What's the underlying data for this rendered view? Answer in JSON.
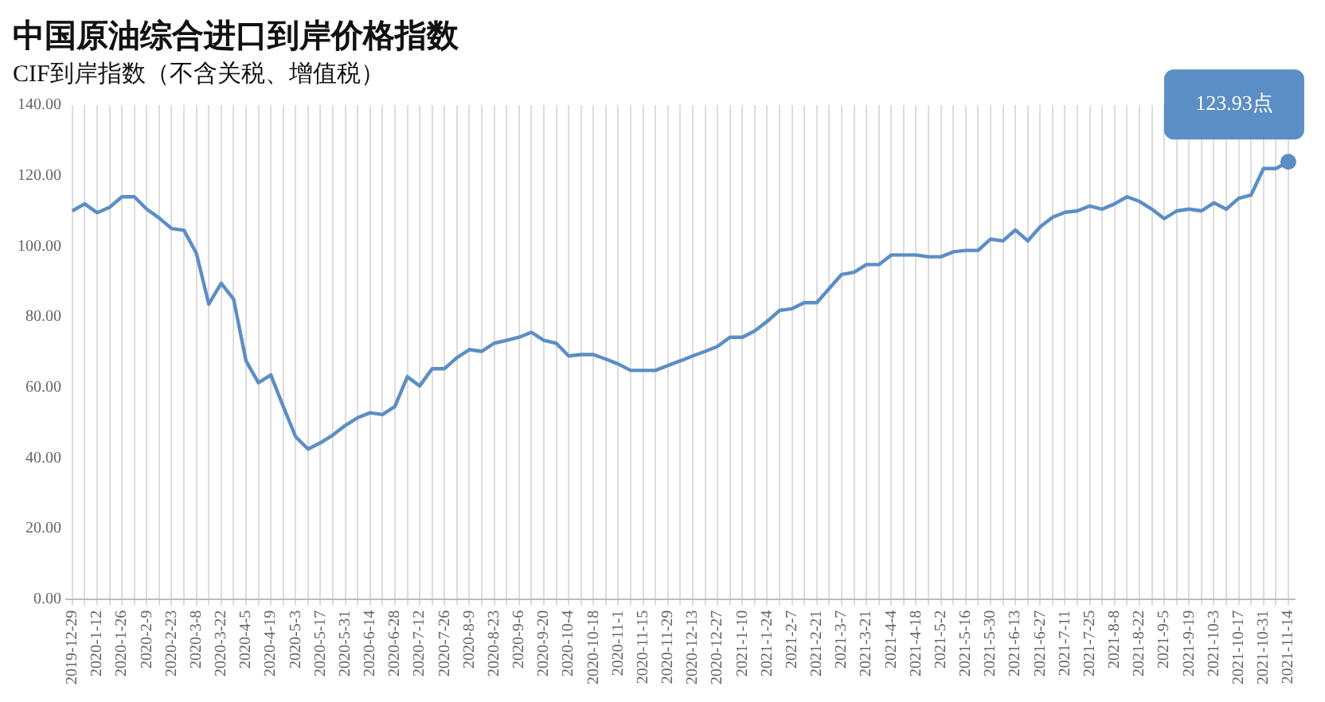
{
  "chart_data": {
    "type": "line",
    "title": "中国原油综合进口到岸价格指数",
    "subtitle": "CIF到岸指数（不含关税、增值税）",
    "categories": [
      "2019-12-29",
      null,
      "2020-1-12",
      null,
      "2020-1-26",
      null,
      "2020-2-9",
      null,
      "2020-2-23",
      null,
      "2020-3-8",
      null,
      "2020-3-22",
      null,
      "2020-4-5",
      null,
      "2020-4-19",
      null,
      "2020-5-3",
      null,
      "2020-5-17",
      null,
      "2020-5-31",
      null,
      "2020-6-14",
      null,
      "2020-6-28",
      null,
      "2020-7-12",
      null,
      "2020-7-26",
      null,
      "2020-8-9",
      null,
      "2020-8-23",
      null,
      "2020-9-6",
      null,
      "2020-9-20",
      null,
      "2020-10-4",
      null,
      "2020-10-18",
      null,
      "2020-11-1",
      null,
      "2020-11-15",
      null,
      "2020-11-29",
      null,
      "2020-12-13",
      null,
      "2020-12-27",
      null,
      "2021-1-10",
      null,
      "2021-1-24",
      null,
      "2021-2-7",
      null,
      "2021-2-21",
      null,
      "2021-3-7",
      null,
      "2021-3-21",
      null,
      "2021-4-4",
      null,
      "2021-4-18",
      null,
      "2021-5-2",
      null,
      "2021-5-16",
      null,
      "2021-5-30",
      null,
      "2021-6-13",
      null,
      "2021-6-27",
      null,
      "2021-7-11",
      null,
      "2021-7-25",
      null,
      "2021-8-8",
      null,
      "2021-8-22",
      null,
      "2021-9-5",
      null,
      "2021-9-19",
      null,
      "2021-10-3",
      null,
      "2021-10-17",
      null,
      "2021-10-31",
      null,
      "2021-11-14"
    ],
    "series": [
      {
        "color": "#5b8ec4",
        "values": [
          110,
          112,
          109.5,
          111,
          114,
          114,
          110.5,
          108,
          105,
          104.5,
          98,
          83.6,
          89.5,
          85,
          67.5,
          61.3,
          63.5,
          54.6,
          46,
          42.5,
          44.3,
          46.5,
          49.2,
          51.4,
          52.8,
          52.3,
          54.6,
          63,
          60.4,
          65.3,
          65.3,
          68.4,
          70.7,
          70.2,
          72.5,
          73.3,
          74.2,
          75.6,
          73.3,
          72.5,
          68.9,
          69.3,
          69.3,
          68,
          66.6,
          64.8,
          64.8,
          64.8,
          66.2,
          67.5,
          68.9,
          70.2,
          71.6,
          74.2,
          74.2,
          76,
          78.7,
          81.8,
          82.3,
          84,
          84,
          88,
          92,
          92.6,
          94.8,
          94.8,
          97.5,
          97.5,
          97.5,
          97,
          97,
          98.4,
          98.8,
          98.8,
          102,
          101.5,
          104.6,
          101.5,
          105.5,
          108.2,
          109.6,
          110,
          111.4,
          110.5,
          112,
          114,
          112.7,
          110.5,
          107.8,
          110,
          110.5,
          110,
          112.3,
          110.5,
          113.6,
          114.5,
          122,
          122,
          123.93
        ]
      }
    ],
    "annotations": [
      {
        "text": "123.93点",
        "x": "2021-11-14",
        "y": 123.93
      }
    ],
    "ylim": [
      0,
      140
    ],
    "yticks": [
      {
        "value": 0,
        "label": "0.00"
      },
      {
        "value": 20,
        "label": "20.00"
      },
      {
        "value": 40,
        "label": "40.00"
      },
      {
        "value": 60,
        "label": "60.00"
      },
      {
        "value": 80,
        "label": "80.00"
      },
      {
        "value": 100,
        "label": "100.00"
      },
      {
        "value": 120,
        "label": "120.00"
      },
      {
        "value": 140,
        "label": "140.00"
      }
    ],
    "grid": "x",
    "legend": false,
    "marker": "none",
    "line_style": "solid"
  }
}
